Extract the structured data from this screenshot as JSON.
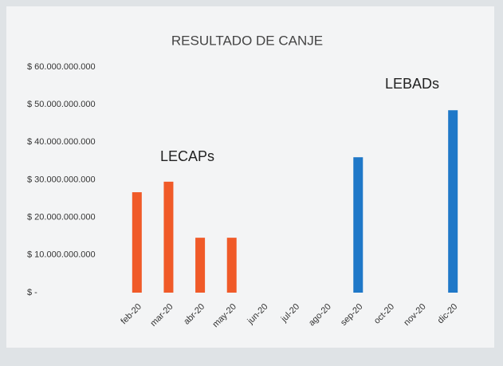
{
  "chart_data": {
    "type": "bar",
    "title": "RESULTADO DE CANJE",
    "categories": [
      "feb-20",
      "mar-20",
      "abr-20",
      "may-20",
      "jun-20",
      "jul-20",
      "ago-20",
      "sep-20",
      "oct-20",
      "nov-20",
      "dic-20"
    ],
    "series": [
      {
        "name": "LECAPs",
        "color": "#f05a28",
        "values": [
          26700000000,
          29500000000,
          14600000000,
          14600000000,
          null,
          null,
          null,
          null,
          null,
          null,
          null
        ]
      },
      {
        "name": "LEBADs",
        "color": "#1f78c8",
        "values": [
          null,
          null,
          null,
          null,
          null,
          null,
          null,
          36000000000,
          null,
          null,
          48500000000
        ]
      }
    ],
    "ylim": [
      0,
      60000000000
    ],
    "yticks": [
      {
        "value": 0,
        "label": "$ -"
      },
      {
        "value": 10000000000,
        "label": "$ 10.000.000.000"
      },
      {
        "value": 20000000000,
        "label": "$ 20.000.000.000"
      },
      {
        "value": 30000000000,
        "label": "$ 30.000.000.000"
      },
      {
        "value": 40000000000,
        "label": "$ 40.000.000.000"
      },
      {
        "value": 50000000000,
        "label": "$ 50.000.000.000"
      },
      {
        "value": 60000000000,
        "label": "$ 60.000.000.000"
      }
    ],
    "grid": false
  }
}
